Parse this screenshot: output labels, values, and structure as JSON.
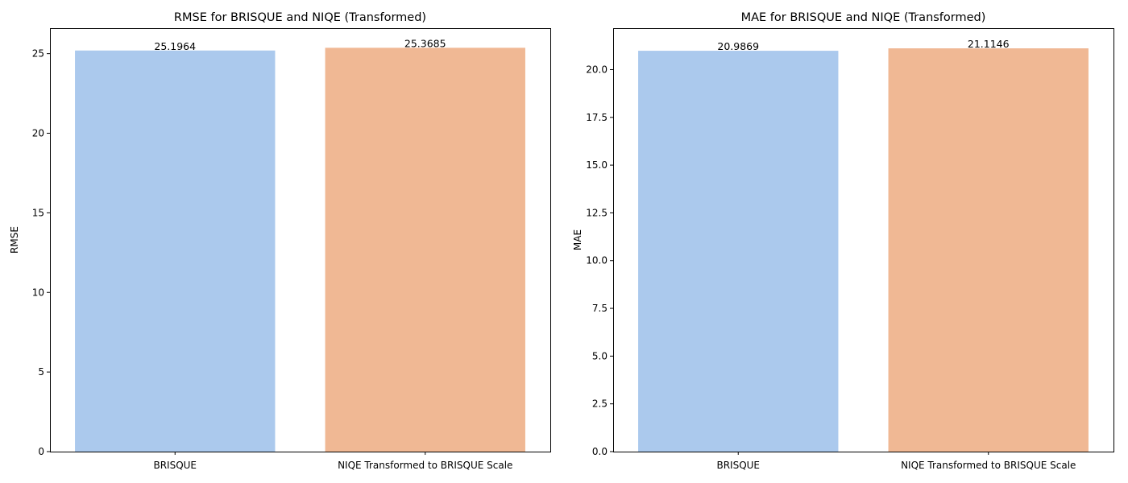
{
  "chart_data": [
    {
      "type": "bar",
      "title": "RMSE for BRISQUE and NIQE (Transformed)",
      "xlabel": "",
      "ylabel": "RMSE",
      "categories": [
        "BRISQUE",
        "NIQE Transformed to BRISQUE Scale"
      ],
      "values": [
        25.1964,
        25.3685
      ],
      "value_labels": [
        "25.1964",
        "25.3685"
      ],
      "colors": [
        "#abc9ed",
        "#f0b894"
      ],
      "ylim": [
        0,
        26.6
      ],
      "yticks": [
        0,
        5,
        10,
        15,
        20,
        25
      ],
      "ytick_labels": [
        "0",
        "5",
        "10",
        "15",
        "20",
        "25"
      ],
      "grid": false,
      "legend": "none"
    },
    {
      "type": "bar",
      "title": "MAE for BRISQUE and NIQE (Transformed)",
      "xlabel": "",
      "ylabel": "MAE",
      "categories": [
        "BRISQUE",
        "NIQE Transformed to BRISQUE Scale"
      ],
      "values": [
        20.9869,
        21.1146
      ],
      "value_labels": [
        "20.9869",
        "21.1146"
      ],
      "colors": [
        "#abc9ed",
        "#f0b894"
      ],
      "ylim": [
        0,
        22.17
      ],
      "yticks": [
        0,
        2.5,
        5,
        7.5,
        10,
        12.5,
        15,
        17.5,
        20
      ],
      "ytick_labels": [
        "0.0",
        "2.5",
        "5.0",
        "7.5",
        "10.0",
        "12.5",
        "15.0",
        "17.5",
        "20.0"
      ],
      "grid": false,
      "legend": "none"
    }
  ]
}
